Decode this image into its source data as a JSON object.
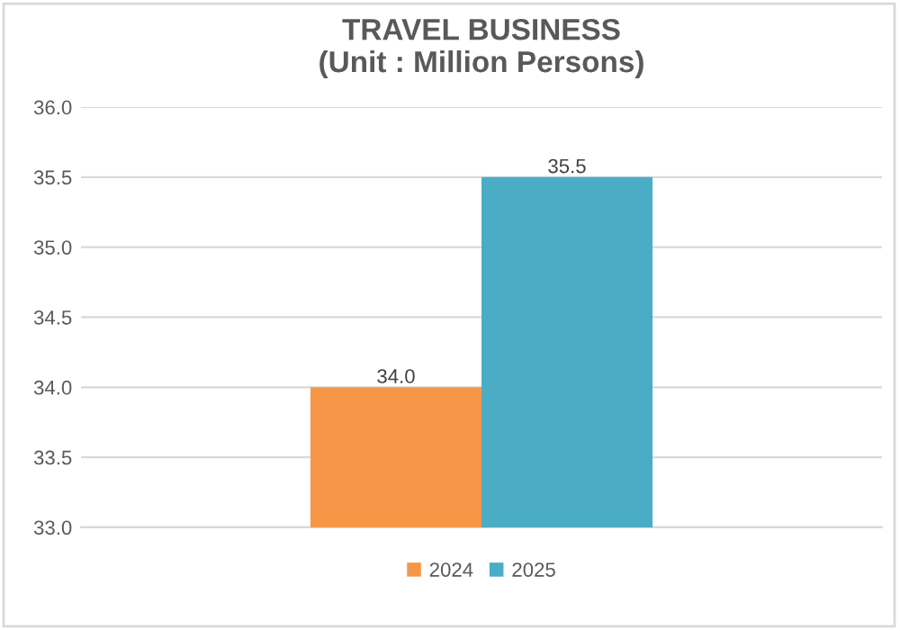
{
  "chart_data": {
    "type": "bar",
    "title": "TRAVEL BUSINESS\n(Unit : Million Persons)",
    "categories": [
      null
    ],
    "series": [
      {
        "name": "2024",
        "color": "#f79646",
        "values": [
          34.0
        ],
        "value_labels": [
          "34.0"
        ]
      },
      {
        "name": "2025",
        "color": "#4bacc6",
        "values": [
          35.5
        ],
        "value_labels": [
          "35.5"
        ]
      }
    ],
    "ylim": [
      33,
      36
    ],
    "yticks": [
      {
        "value": 33,
        "label": "33.0"
      },
      {
        "value": 33.5,
        "label": "33.5"
      },
      {
        "value": 34,
        "label": "34.0"
      },
      {
        "value": 34.5,
        "label": "34.5"
      },
      {
        "value": 35,
        "label": "35.0"
      },
      {
        "value": 35.5,
        "label": "35.5"
      },
      {
        "value": 36,
        "label": "36.0"
      }
    ],
    "grid": "y",
    "legend": "bottom"
  }
}
